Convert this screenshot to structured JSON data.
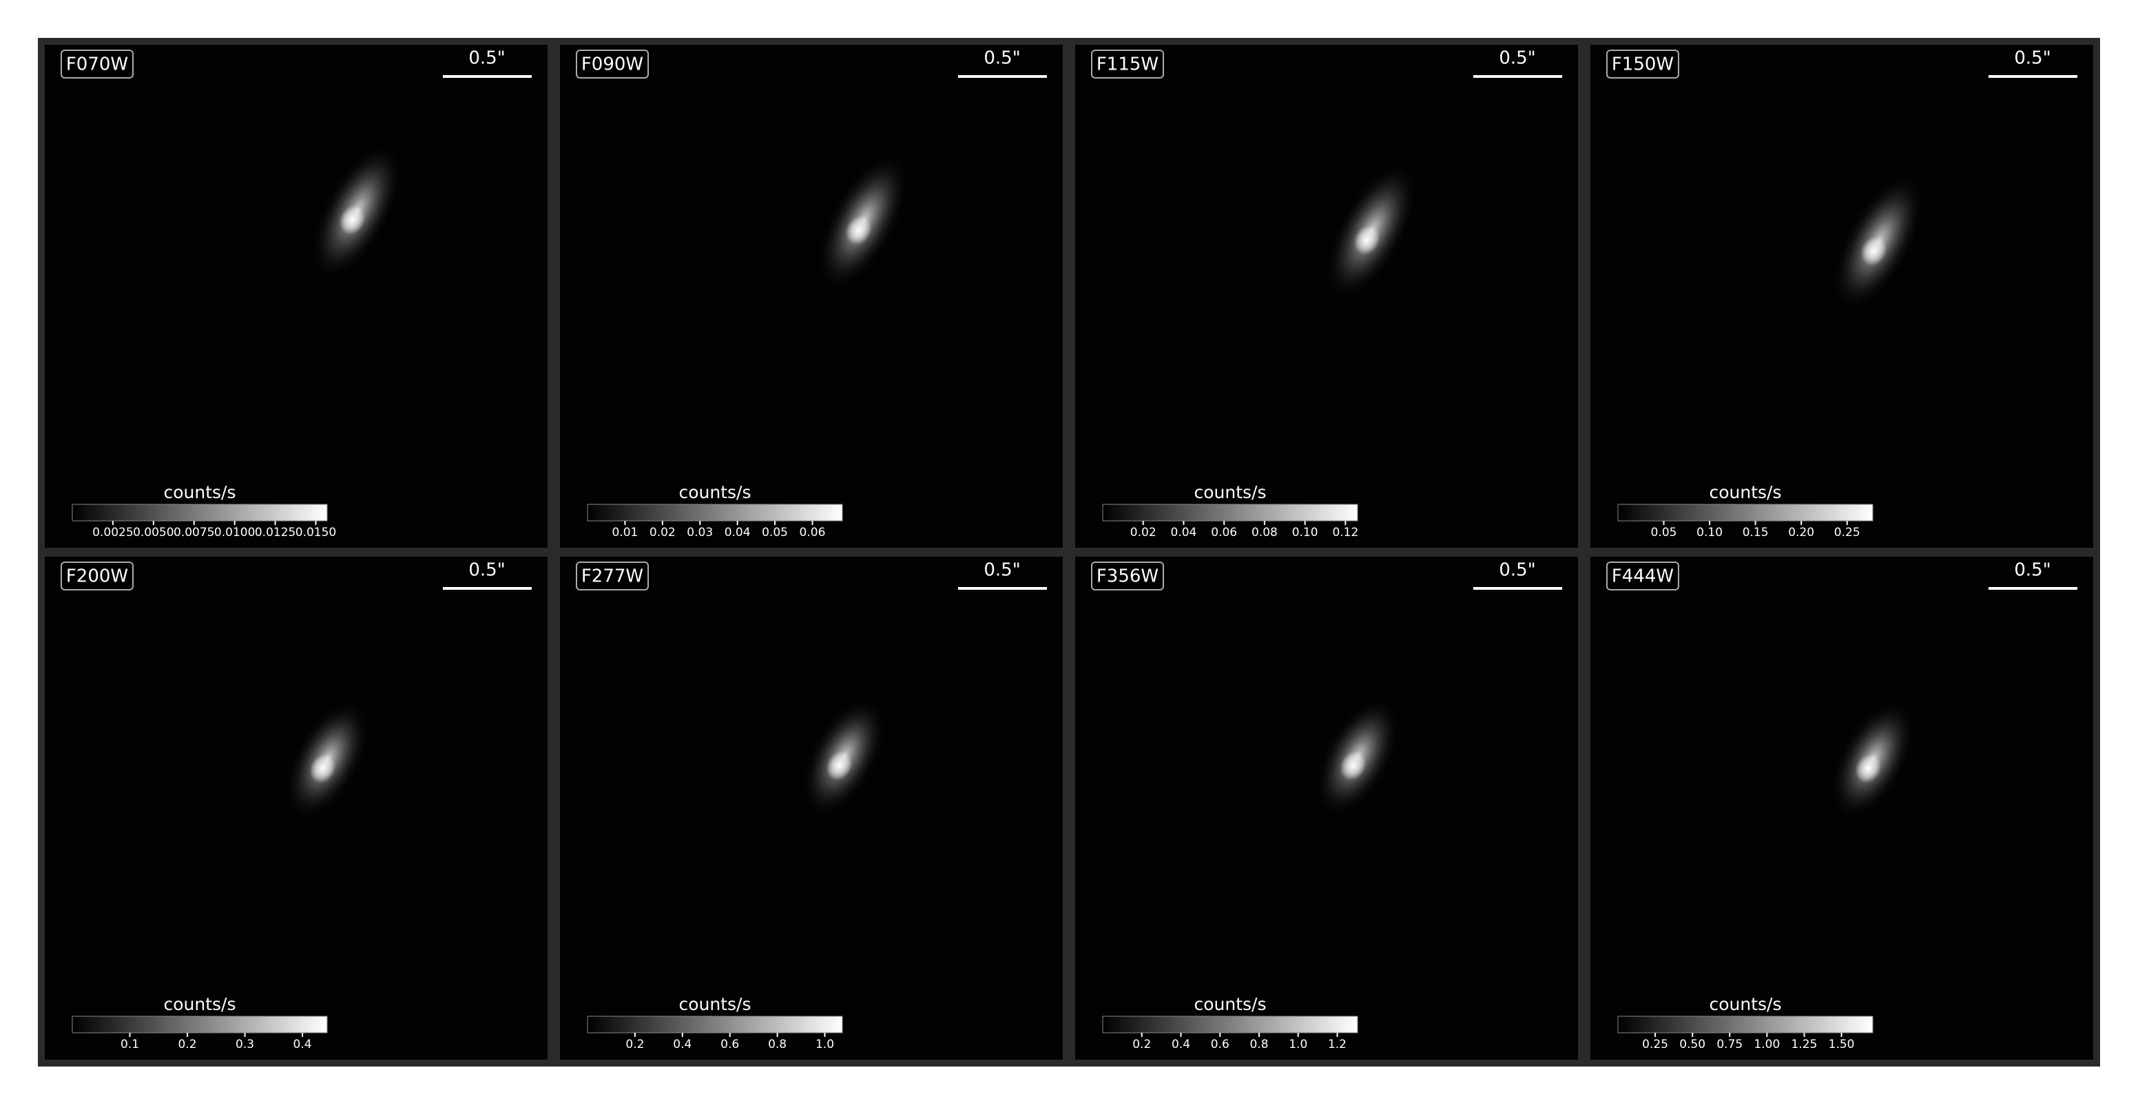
{
  "panels": [
    {
      "filter": "F070W",
      "scalebar": "0.5\"",
      "colorbar": {
        "label": "counts/s",
        "lim": [
          0,
          0.0157
        ],
        "ticks": [
          0.0025,
          {
            "value": 0.005,
            "label": "0.0050"
          },
          0.0075,
          {
            "value": 0.01,
            "label": "0.0100"
          },
          0.0125,
          {
            "value": 0.015,
            "label": "0.0150"
          }
        ]
      }
    },
    {
      "filter": "F090W",
      "scalebar": "0.5\"",
      "colorbar": {
        "label": "counts/s",
        "lim": [
          0,
          0.068
        ],
        "ticks": [
          0.01,
          0.02,
          0.03,
          0.04,
          0.05,
          0.06
        ]
      }
    },
    {
      "filter": "F115W",
      "scalebar": "0.5\"",
      "colorbar": {
        "label": "counts/s",
        "lim": [
          0,
          0.126
        ],
        "ticks": [
          0.02,
          0.04,
          0.06,
          0.08,
          {
            "value": 0.1,
            "label": "0.10"
          },
          0.12
        ]
      }
    },
    {
      "filter": "F150W",
      "scalebar": "0.5\"",
      "colorbar": {
        "label": "counts/s",
        "lim": [
          0,
          0.278
        ],
        "ticks": [
          0.05,
          {
            "value": 0.1,
            "label": "0.10"
          },
          0.15,
          {
            "value": 0.2,
            "label": "0.20"
          },
          0.25
        ]
      }
    },
    {
      "filter": "F200W",
      "scalebar": "0.5\"",
      "colorbar": {
        "label": "counts/s",
        "lim": [
          0,
          0.443
        ],
        "ticks": [
          0.1,
          0.2,
          0.3,
          0.4
        ]
      }
    },
    {
      "filter": "F277W",
      "scalebar": "0.5\"",
      "colorbar": {
        "label": "counts/s",
        "lim": [
          0,
          1.074
        ],
        "ticks": [
          0.2,
          0.4,
          0.6,
          0.8,
          {
            "value": 1,
            "label": "1.0"
          }
        ]
      }
    },
    {
      "filter": "F356W",
      "scalebar": "0.5\"",
      "colorbar": {
        "label": "counts/s",
        "lim": [
          0,
          1.304
        ],
        "ticks": [
          0.2,
          0.4,
          0.6,
          0.8,
          {
            "value": 1,
            "label": "1.0"
          },
          1.2
        ]
      }
    },
    {
      "filter": "F444W",
      "scalebar": "0.5\"",
      "colorbar": {
        "label": "counts/s",
        "lim": [
          0,
          1.71
        ],
        "ticks": [
          0.25,
          {
            "value": 0.5,
            "label": "0.50"
          },
          0.75,
          {
            "value": 1,
            "label": "1.00"
          },
          1.25,
          {
            "value": 1.5,
            "label": "1.50"
          }
        ]
      }
    }
  ]
}
